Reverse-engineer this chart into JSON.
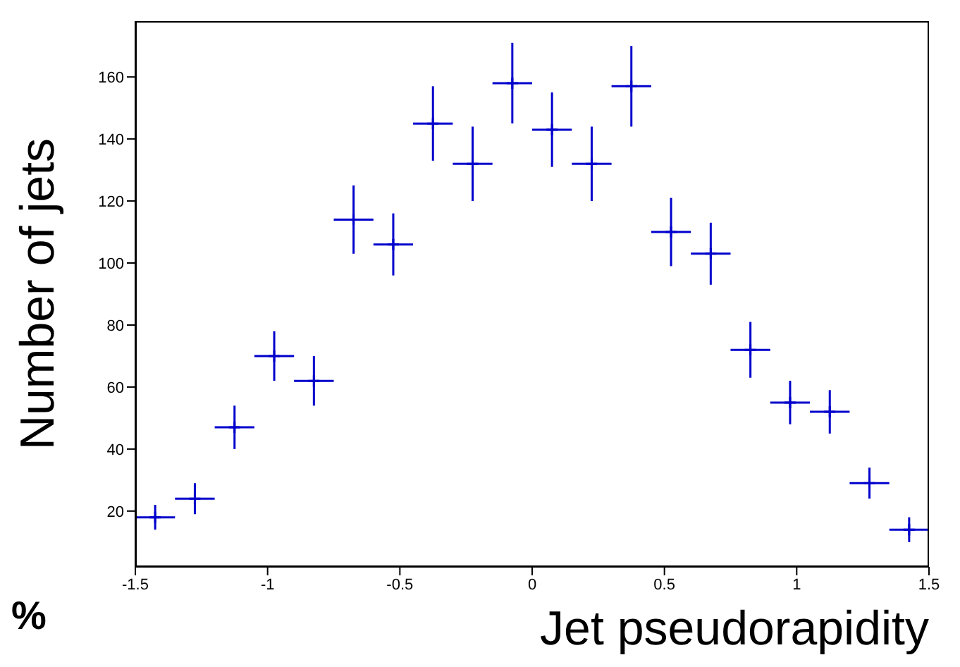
{
  "chart_data": {
    "type": "scatter",
    "xlabel": "Jet pseudorapidity",
    "ylabel": "Number of jets",
    "annotations": [
      "%"
    ],
    "x": [
      -1.425,
      -1.275,
      -1.125,
      -0.975,
      -0.825,
      -0.675,
      -0.525,
      -0.375,
      -0.225,
      -0.075,
      0.075,
      0.225,
      0.375,
      0.525,
      0.675,
      0.825,
      0.975,
      1.125,
      1.275,
      1.425
    ],
    "values": [
      18,
      24,
      47,
      70,
      62,
      114,
      106,
      145,
      132,
      158,
      143,
      132,
      157,
      110,
      103,
      72,
      55,
      52,
      29,
      14
    ],
    "errors": [
      4,
      5,
      7,
      8,
      8,
      11,
      10,
      12,
      12,
      13,
      12,
      12,
      13,
      11,
      10,
      9,
      7,
      7,
      5,
      4
    ],
    "xerrors": [
      0.075,
      0.075,
      0.075,
      0.075,
      0.075,
      0.075,
      0.075,
      0.075,
      0.075,
      0.075,
      0.075,
      0.075,
      0.075,
      0.075,
      0.075,
      0.075,
      0.075,
      0.075,
      0.075,
      0.075
    ],
    "color": "#0000cc",
    "marker": "cross",
    "grid": false,
    "legend": false,
    "xlim": [
      -1.5,
      1.5
    ],
    "xticks": [
      -1.5,
      -1,
      -0.5,
      0,
      0.5,
      1,
      1.5
    ],
    "ylim": [
      2,
      178
    ],
    "yticks": [
      20,
      40,
      60,
      80,
      100,
      120,
      140,
      160
    ]
  }
}
